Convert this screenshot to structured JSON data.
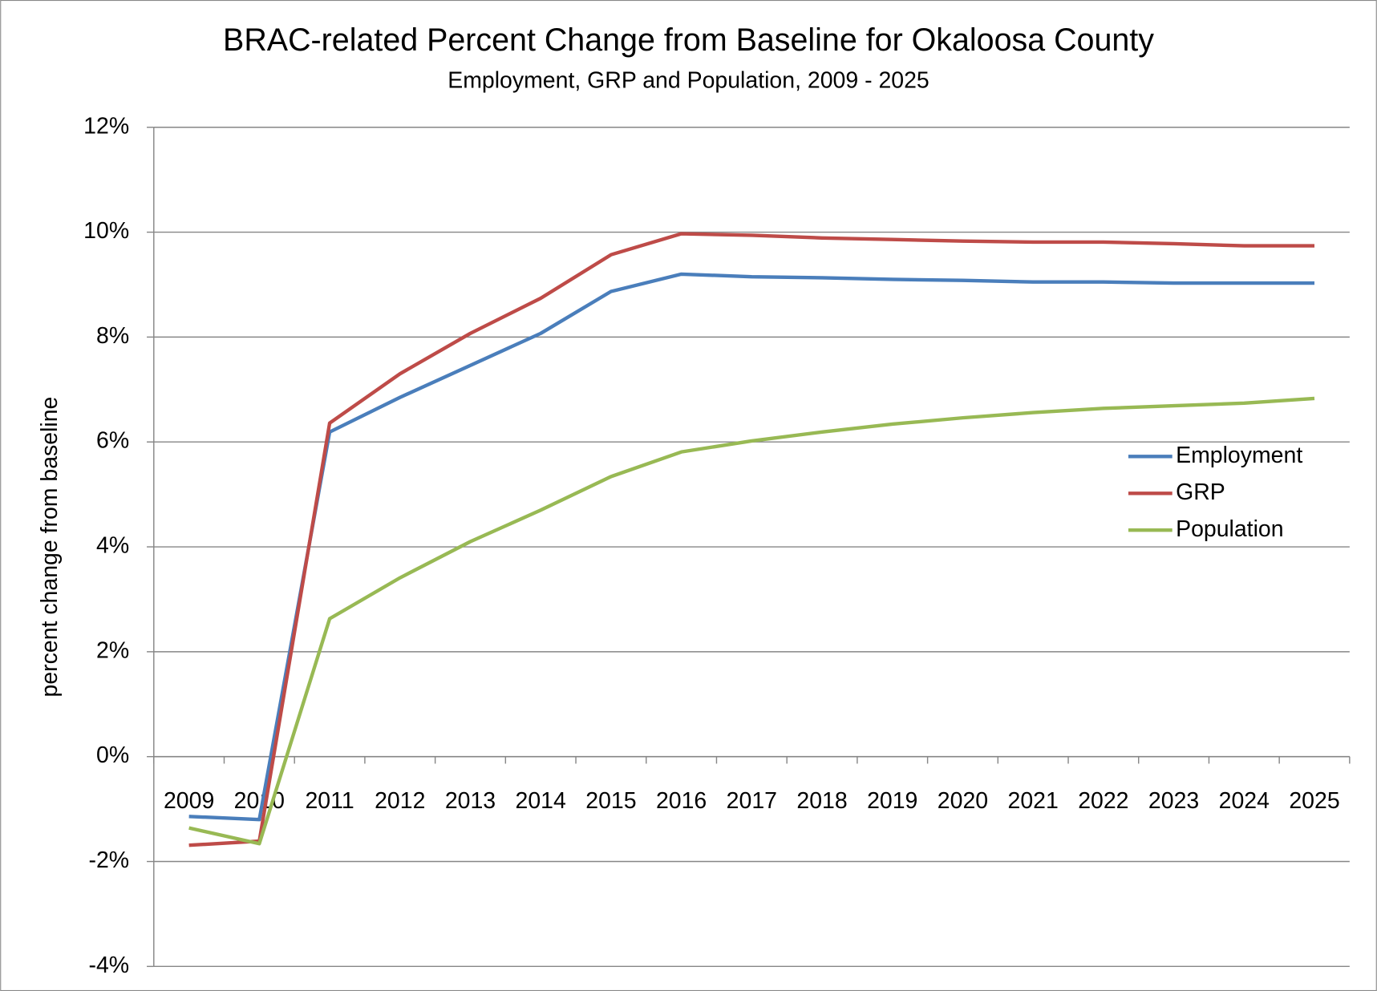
{
  "chart_data": {
    "type": "line",
    "title": "BRAC-related Percent Change from Baseline for Okaloosa County",
    "subtitle": "Employment, GRP and Population, 2009 - 2025",
    "y_label": "percent change from baseline",
    "categories": [
      "2009",
      "2010",
      "2011",
      "2012",
      "2013",
      "2014",
      "2015",
      "2016",
      "2017",
      "2018",
      "2019",
      "2020",
      "2021",
      "2022",
      "2023",
      "2024",
      "2025"
    ],
    "series": [
      {
        "name": "Employment",
        "color": "#4a7ebb",
        "values": [
          -1.14,
          -1.2,
          6.19,
          6.85,
          7.46,
          8.07,
          8.87,
          9.2,
          9.15,
          9.13,
          9.1,
          9.08,
          9.05,
          9.05,
          9.03,
          9.03,
          9.03
        ]
      },
      {
        "name": "GRP",
        "color": "#be4b48",
        "values": [
          -1.69,
          -1.61,
          6.36,
          7.3,
          8.07,
          8.74,
          9.57,
          9.97,
          9.94,
          9.89,
          9.86,
          9.83,
          9.81,
          9.81,
          9.78,
          9.74,
          9.74
        ]
      },
      {
        "name": "Population",
        "color": "#98b954",
        "values": [
          -1.36,
          -1.66,
          2.63,
          3.41,
          4.1,
          4.7,
          5.34,
          5.81,
          6.02,
          6.19,
          6.34,
          6.46,
          6.56,
          6.64,
          6.69,
          6.74,
          6.83
        ]
      }
    ],
    "ylim": [
      -4,
      12
    ],
    "yticks": [
      {
        "value": -4,
        "label": "-4%"
      },
      {
        "value": -2,
        "label": "-2%"
      },
      {
        "value": 0,
        "label": "0%"
      },
      {
        "value": 2,
        "label": "2%"
      },
      {
        "value": 4,
        "label": "4%"
      },
      {
        "value": 6,
        "label": "6%"
      },
      {
        "value": 8,
        "label": "8%"
      },
      {
        "value": 10,
        "label": "10%"
      },
      {
        "value": 12,
        "label": "12%"
      }
    ],
    "grid": true,
    "legend": "right"
  }
}
